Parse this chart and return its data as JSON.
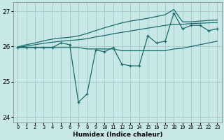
{
  "x": [
    0,
    1,
    2,
    3,
    4,
    5,
    6,
    7,
    8,
    9,
    10,
    11,
    12,
    13,
    14,
    15,
    16,
    17,
    18,
    19,
    20,
    21,
    22,
    23
  ],
  "line_main": [
    25.97,
    25.97,
    25.97,
    25.97,
    25.97,
    26.1,
    26.05,
    24.42,
    24.65,
    25.9,
    25.85,
    25.97,
    25.5,
    25.45,
    25.45,
    26.3,
    26.1,
    26.15,
    26.95,
    26.5,
    26.6,
    26.6,
    26.45,
    26.5
  ],
  "line_flat": [
    25.97,
    25.97,
    25.97,
    25.97,
    25.97,
    25.97,
    25.97,
    25.97,
    25.93,
    25.93,
    25.93,
    25.93,
    25.88,
    25.88,
    25.88,
    25.88,
    25.88,
    25.88,
    25.93,
    25.95,
    26.0,
    26.05,
    26.1,
    26.15
  ],
  "line_trend1": [
    25.97,
    26.01,
    26.05,
    26.09,
    26.12,
    26.15,
    26.17,
    26.19,
    26.22,
    26.27,
    26.31,
    26.36,
    26.4,
    26.44,
    26.48,
    26.52,
    26.56,
    26.6,
    26.63,
    26.63,
    26.65,
    26.66,
    26.67,
    26.68
  ],
  "line_trend2": [
    25.99,
    26.05,
    26.1,
    26.16,
    26.21,
    26.24,
    26.26,
    26.3,
    26.37,
    26.45,
    26.53,
    26.6,
    26.67,
    26.72,
    26.76,
    26.8,
    26.85,
    26.9,
    27.05,
    26.7,
    26.7,
    26.72,
    26.74,
    26.75
  ],
  "bg_color": "#c8e8e8",
  "grid_color": "#a8cccc",
  "line_color": "#1a6b6b",
  "xlabel": "Humidex (Indice chaleur)",
  "ylim": [
    23.85,
    27.25
  ],
  "yticks": [
    24,
    25,
    26,
    27
  ],
  "xticks": [
    0,
    1,
    2,
    3,
    4,
    5,
    6,
    7,
    8,
    9,
    10,
    11,
    12,
    13,
    14,
    15,
    16,
    17,
    18,
    19,
    20,
    21,
    22,
    23
  ]
}
